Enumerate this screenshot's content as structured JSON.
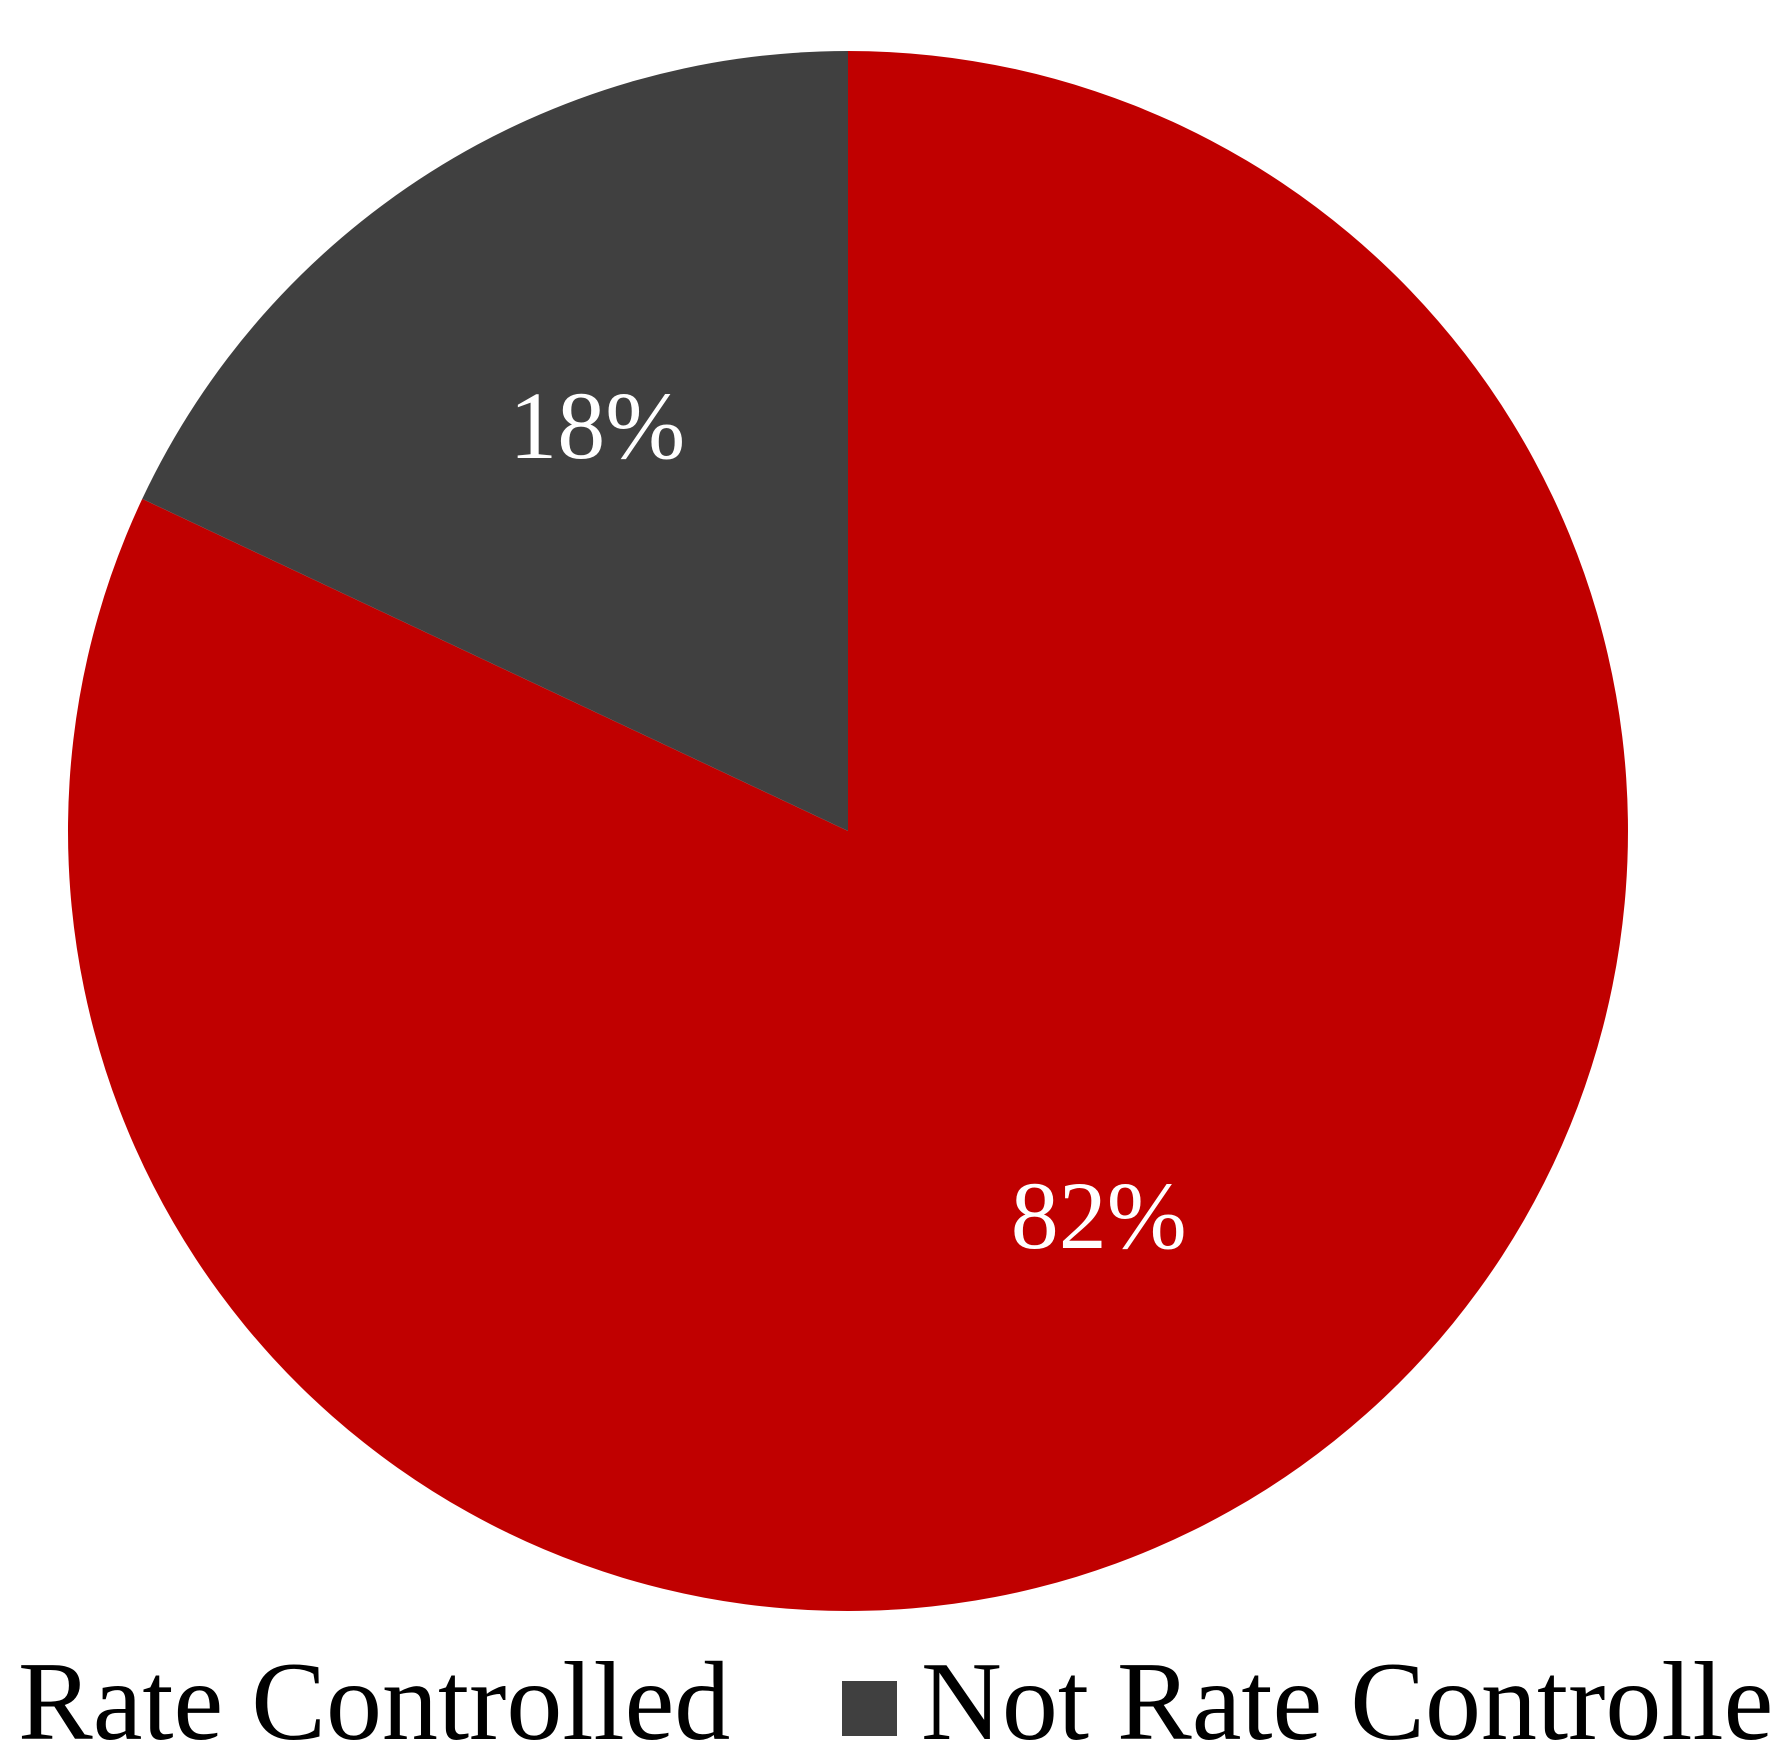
{
  "chart_data": {
    "type": "pie",
    "start_angle_deg": 0,
    "direction": "clockwise",
    "slices": [
      {
        "name": "Rate Controlled",
        "value": 82,
        "label": "82%",
        "color": "#C00000"
      },
      {
        "name": "Not Rate Controlled",
        "value": 18,
        "label": "18%",
        "color": "#404040"
      }
    ],
    "legend": {
      "placement": "bottom",
      "entries": [
        {
          "label": "Rate Controlled",
          "color": "#C00000"
        },
        {
          "label": "Not Rate Controlled",
          "color": "#404040"
        }
      ]
    }
  }
}
